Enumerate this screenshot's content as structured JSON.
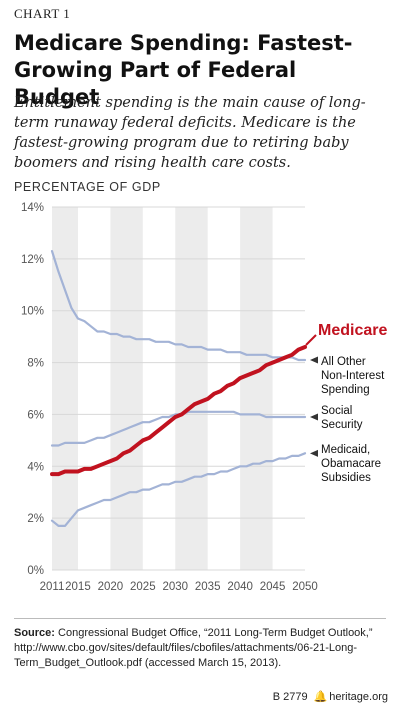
{
  "header": {
    "chart_label": "CHART 1",
    "title": "Medicare Spending: Fastest-Growing Part of Federal Budget",
    "subtitle": "Entitlement spending is the main cause of long-term runaway federal deficits. Medicare is the fastest-growing program due to retiring baby boomers and rising health care costs.",
    "ylabel": "PERCENTAGE OF GDP"
  },
  "chart_data": {
    "type": "line",
    "title": "Medicare Spending: Fastest-Growing Part of Federal Budget",
    "ylabel": "PERCENTAGE OF GDP",
    "xlim": [
      2011,
      2050
    ],
    "ylim": [
      0,
      14
    ],
    "yticks": [
      "0%",
      "2%",
      "4%",
      "6%",
      "8%",
      "10%",
      "12%",
      "14%"
    ],
    "xticks": [
      "2011",
      "2015",
      "2020",
      "2025",
      "2030",
      "2035",
      "2040",
      "2045",
      "2050"
    ],
    "bands": "alternating shaded 5-year bands",
    "legend_placement": "right end of lines",
    "x": [
      2011,
      2012,
      2013,
      2014,
      2015,
      2016,
      2017,
      2018,
      2019,
      2020,
      2021,
      2022,
      2023,
      2024,
      2025,
      2026,
      2027,
      2028,
      2029,
      2030,
      2031,
      2032,
      2033,
      2034,
      2035,
      2036,
      2037,
      2038,
      2039,
      2040,
      2041,
      2042,
      2043,
      2044,
      2045,
      2046,
      2047,
      2048,
      2049,
      2050
    ],
    "series": [
      {
        "name": "Medicare",
        "color": "#c1121f",
        "highlight": true,
        "values": [
          3.7,
          3.7,
          3.8,
          3.8,
          3.8,
          3.9,
          3.9,
          4.0,
          4.1,
          4.2,
          4.3,
          4.5,
          4.6,
          4.8,
          5.0,
          5.1,
          5.3,
          5.5,
          5.7,
          5.9,
          6.0,
          6.2,
          6.4,
          6.5,
          6.6,
          6.8,
          6.9,
          7.1,
          7.2,
          7.4,
          7.5,
          7.6,
          7.7,
          7.9,
          8.0,
          8.1,
          8.2,
          8.3,
          8.5,
          8.6
        ]
      },
      {
        "name": "All Other Non-Interest Spending",
        "color": "#a3b3d6",
        "values": [
          12.3,
          11.5,
          10.8,
          10.1,
          9.7,
          9.6,
          9.4,
          9.2,
          9.2,
          9.1,
          9.1,
          9.0,
          9.0,
          8.9,
          8.9,
          8.9,
          8.8,
          8.8,
          8.8,
          8.7,
          8.7,
          8.6,
          8.6,
          8.6,
          8.5,
          8.5,
          8.5,
          8.4,
          8.4,
          8.4,
          8.3,
          8.3,
          8.3,
          8.3,
          8.2,
          8.2,
          8.2,
          8.2,
          8.1,
          8.1
        ]
      },
      {
        "name": "Social Security",
        "color": "#a3b3d6",
        "values": [
          4.8,
          4.8,
          4.9,
          4.9,
          4.9,
          4.9,
          5.0,
          5.1,
          5.1,
          5.2,
          5.3,
          5.4,
          5.5,
          5.6,
          5.7,
          5.7,
          5.8,
          5.9,
          5.9,
          6.0,
          6.0,
          6.1,
          6.1,
          6.1,
          6.1,
          6.1,
          6.1,
          6.1,
          6.1,
          6.0,
          6.0,
          6.0,
          6.0,
          5.9,
          5.9,
          5.9,
          5.9,
          5.9,
          5.9,
          5.9
        ]
      },
      {
        "name": "Medicaid, Obamacare Subsidies",
        "color": "#a3b3d6",
        "values": [
          1.9,
          1.7,
          1.7,
          2.0,
          2.3,
          2.4,
          2.5,
          2.6,
          2.7,
          2.7,
          2.8,
          2.9,
          3.0,
          3.0,
          3.1,
          3.1,
          3.2,
          3.3,
          3.3,
          3.4,
          3.4,
          3.5,
          3.6,
          3.6,
          3.7,
          3.7,
          3.8,
          3.8,
          3.9,
          4.0,
          4.0,
          4.1,
          4.1,
          4.2,
          4.2,
          4.3,
          4.3,
          4.4,
          4.4,
          4.5
        ]
      }
    ],
    "series_labels": [
      {
        "lines": [
          "Medicare"
        ]
      },
      {
        "lines": [
          "All Other",
          "Non-Interest",
          "Spending"
        ]
      },
      {
        "lines": [
          "Social",
          "Security"
        ]
      },
      {
        "lines": [
          "Medicaid,",
          "Obamacare",
          "Subsidies"
        ]
      }
    ]
  },
  "footer": {
    "source_label": "Source:",
    "source_text": " Congressional Budget Office, “2011 Long-Term Budget Outlook,” http://www.cbo.gov/sites/default/files/cbofiles/attachments/06-21-Long-Term_Budget_Outlook.pdf (accessed March 15, 2013).",
    "code": "B 2779",
    "site": "heritage.org"
  },
  "colors": {
    "medicare": "#c1121f",
    "other_lines": "#a3b3d6",
    "band": "#ececec",
    "grid": "#d8d8d8"
  }
}
